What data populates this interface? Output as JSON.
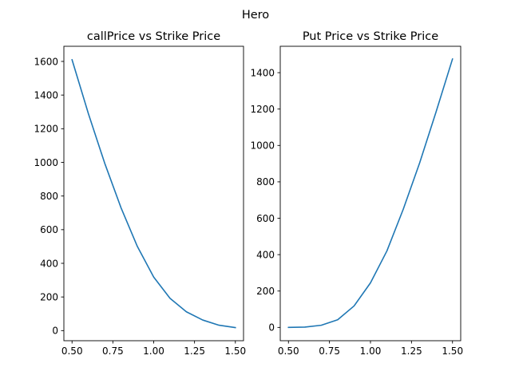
{
  "figure": {
    "suptitle": "Hero"
  },
  "chart_data": [
    {
      "type": "line",
      "title": "callPrice vs Strike Price",
      "xlabel": "",
      "ylabel": "",
      "xlim": [
        0.45,
        1.55
      ],
      "ylim": [
        -60,
        1690
      ],
      "xticks": [
        0.5,
        0.75,
        1.0,
        1.25,
        1.5
      ],
      "xtick_labels": [
        "0.50",
        "0.75",
        "1.00",
        "1.25",
        "1.50"
      ],
      "yticks": [
        0,
        200,
        400,
        600,
        800,
        1000,
        1200,
        1400,
        1600
      ],
      "ytick_labels": [
        "0",
        "200",
        "400",
        "600",
        "800",
        "1000",
        "1200",
        "1400",
        "1600"
      ],
      "grid": false,
      "series": [
        {
          "color": "#1f77b4",
          "x": [
            0.5,
            0.6,
            0.7,
            0.8,
            0.9,
            1.0,
            1.1,
            1.2,
            1.3,
            1.4,
            1.5
          ],
          "y": [
            1610,
            1290,
            995,
            730,
            500,
            318,
            192,
            112,
            63,
            32,
            18
          ]
        }
      ]
    },
    {
      "type": "line",
      "title": "Put Price vs Strike Price",
      "xlabel": "",
      "ylabel": "",
      "xlim": [
        0.45,
        1.55
      ],
      "ylim": [
        -73,
        1545
      ],
      "xticks": [
        0.5,
        0.75,
        1.0,
        1.25,
        1.5
      ],
      "xtick_labels": [
        "0.50",
        "0.75",
        "1.00",
        "1.25",
        "1.50"
      ],
      "yticks": [
        0,
        200,
        400,
        600,
        800,
        1000,
        1200,
        1400
      ],
      "ytick_labels": [
        "0",
        "200",
        "400",
        "600",
        "800",
        "1000",
        "1200",
        "1400"
      ],
      "grid": false,
      "series": [
        {
          "color": "#1f77b4",
          "x": [
            0.5,
            0.6,
            0.7,
            0.8,
            0.9,
            1.0,
            1.1,
            1.2,
            1.3,
            1.4,
            1.5
          ],
          "y": [
            0,
            2,
            12,
            42,
            118,
            245,
            420,
            650,
            905,
            1185,
            1475
          ]
        }
      ]
    }
  ]
}
